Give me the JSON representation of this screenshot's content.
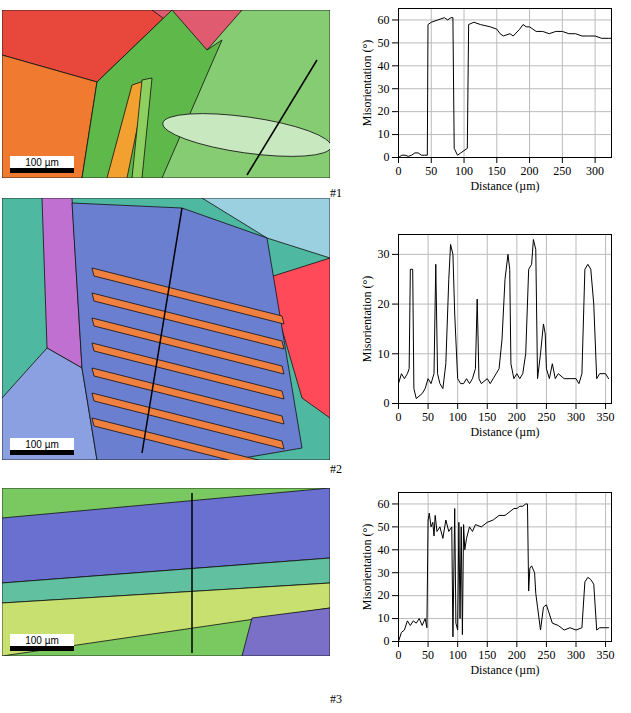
{
  "chart_data": [
    {
      "type": "line",
      "title": "#1",
      "x_label": "Distance (µm)",
      "y_label": "Misorientation (°)",
      "color": "#000000",
      "grid": true,
      "xlim": [
        0,
        325
      ],
      "xticks": [
        0,
        50,
        100,
        150,
        200,
        250,
        300
      ],
      "ylim": [
        0,
        65
      ],
      "yticks": [
        0,
        10,
        20,
        30,
        40,
        50,
        60
      ],
      "x": [
        0,
        5,
        10,
        15,
        20,
        25,
        30,
        35,
        40,
        44,
        45,
        50,
        60,
        70,
        75,
        80,
        83,
        85,
        90,
        95,
        100,
        105,
        107,
        115,
        125,
        140,
        150,
        155,
        160,
        170,
        175,
        185,
        190,
        195,
        200,
        210,
        220,
        230,
        240,
        250,
        260,
        270,
        280,
        290,
        300,
        310,
        320,
        325
      ],
      "values": [
        0,
        1,
        1,
        0.5,
        1,
        2,
        2,
        1,
        1,
        1,
        58,
        59,
        60,
        61,
        60,
        61,
        61,
        4,
        1,
        2,
        3,
        4,
        58,
        59,
        58,
        57,
        56,
        54,
        53,
        54,
        53,
        56,
        58,
        57,
        57,
        55,
        55,
        54,
        55,
        55,
        54,
        54,
        53,
        53,
        53,
        52,
        52,
        52
      ]
    },
    {
      "type": "line",
      "title": "#2",
      "x_label": "Distance (µm)",
      "y_label": "Misorientation (°)",
      "color": "#000000",
      "grid": true,
      "xlim": [
        0,
        360
      ],
      "xticks": [
        0,
        50,
        100,
        150,
        200,
        250,
        300,
        350
      ],
      "ylim": [
        0,
        34
      ],
      "yticks": [
        0,
        10,
        20,
        30
      ],
      "x": [
        0,
        5,
        10,
        15,
        18,
        20,
        24,
        26,
        30,
        40,
        45,
        50,
        55,
        60,
        63,
        66,
        70,
        75,
        80,
        85,
        88,
        92,
        95,
        100,
        105,
        110,
        115,
        120,
        125,
        130,
        133,
        136,
        140,
        150,
        155,
        160,
        165,
        170,
        175,
        180,
        185,
        188,
        190,
        195,
        200,
        205,
        210,
        215,
        220,
        225,
        228,
        232,
        235,
        240,
        245,
        248,
        250,
        255,
        260,
        265,
        270,
        280,
        290,
        300,
        305,
        310,
        315,
        320,
        325,
        330,
        335,
        340,
        350,
        355
      ],
      "values": [
        4,
        6,
        5,
        6,
        7,
        27,
        27,
        3,
        1,
        2,
        3,
        5,
        4,
        6,
        28,
        6,
        4,
        3,
        8,
        25,
        32,
        30,
        18,
        5,
        4,
        4,
        5,
        4,
        5,
        7,
        21,
        5,
        4,
        5,
        4,
        5,
        6,
        7,
        13,
        25,
        30,
        27,
        8,
        5,
        6,
        5,
        6,
        10,
        27,
        28,
        33,
        31,
        5,
        10,
        16,
        14,
        7,
        5,
        8,
        5,
        6,
        5,
        5,
        5,
        4,
        6,
        27,
        28,
        27,
        20,
        5,
        6,
        6,
        5
      ]
    },
    {
      "type": "line",
      "title": "#3",
      "x_label": "Distance (µm)",
      "y_label": "Misorientation (°)",
      "color": "#000000",
      "grid": true,
      "xlim": [
        0,
        360
      ],
      "xticks": [
        0,
        50,
        100,
        150,
        200,
        250,
        300,
        350
      ],
      "ylim": [
        0,
        65
      ],
      "yticks": [
        0,
        10,
        20,
        30,
        40,
        50,
        60
      ],
      "x": [
        0,
        5,
        10,
        15,
        20,
        25,
        30,
        35,
        40,
        45,
        48,
        50,
        52,
        55,
        58,
        60,
        62,
        65,
        70,
        75,
        80,
        85,
        90,
        92,
        95,
        97,
        100,
        102,
        104,
        106,
        108,
        110,
        112,
        115,
        120,
        125,
        130,
        140,
        150,
        160,
        170,
        180,
        190,
        195,
        200,
        205,
        210,
        215,
        218,
        220,
        222,
        225,
        230,
        232,
        235,
        240,
        245,
        250,
        255,
        260,
        270,
        280,
        290,
        300,
        310,
        315,
        320,
        325,
        330,
        335,
        340,
        350,
        355
      ],
      "values": [
        0,
        4,
        5,
        9,
        7,
        9,
        8,
        10,
        7,
        10,
        6,
        53,
        56,
        50,
        52,
        46,
        55,
        48,
        50,
        45,
        53,
        48,
        50,
        2,
        58,
        8,
        5,
        52,
        10,
        50,
        3,
        51,
        40,
        45,
        50,
        48,
        51,
        50,
        52,
        53,
        55,
        55,
        57,
        58,
        58,
        59,
        59,
        60,
        60,
        22,
        32,
        33,
        30,
        21,
        15,
        5,
        15,
        16,
        12,
        8,
        7,
        5,
        6,
        5,
        6,
        26,
        28,
        27,
        25,
        5,
        6,
        6,
        6
      ]
    }
  ],
  "maps": [
    {
      "scale_bar": "100 µm"
    },
    {
      "scale_bar": "100 µm"
    },
    {
      "scale_bar": "100 µm"
    }
  ]
}
